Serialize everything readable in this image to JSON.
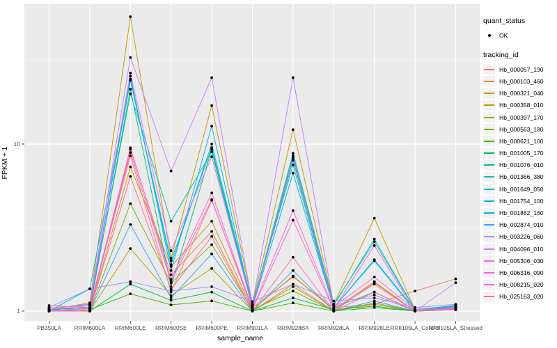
{
  "axis": {
    "x_title": "sample_name",
    "y_title": "FPKM + 1"
  },
  "legend": {
    "quant_status_title": "quant_status",
    "quant_status_item": "OK",
    "tracking_title": "tracking_id"
  },
  "style": {
    "panel_bg": "#EBEBEB",
    "grid_color": "#FFFFFF",
    "tick_label_color": "#4D4D4D",
    "point_color": "#000000"
  },
  "chart_data": {
    "type": "line",
    "title": "",
    "xlabel": "sample_name",
    "ylabel": "FPKM + 1",
    "y_scale": "log10",
    "y_tick_values": [
      1,
      10
    ],
    "y_tick_labels": [
      "1",
      "10"
    ],
    "y_minor_values": [
      3.162,
      31.62
    ],
    "ylim": [
      0.87,
      70
    ],
    "grid": true,
    "legend_position": "right",
    "categories": [
      "PB350LA",
      "RRIM600LA",
      "RRIM600LE",
      "RRIM600SE",
      "RRIM600PE",
      "RRIM901LA",
      "RRIM928BA",
      "RRIM928LA",
      "RRIM928LE",
      "RRII105LA_Control",
      "RRII105LA_Stressed"
    ],
    "series": [
      {
        "name": "Hb_000057_190",
        "color": "#F8766D",
        "values": [
          1.08,
          1.05,
          8.5,
          1.3,
          4.6,
          1.05,
          1.6,
          1.05,
          1.1,
          1.32,
          1.56
        ]
      },
      {
        "name": "Hb_000103_460",
        "color": "#EA8331",
        "values": [
          1.05,
          1.0,
          9.3,
          1.65,
          3.0,
          1.0,
          1.45,
          1.0,
          1.48,
          1.0,
          1.05
        ]
      },
      {
        "name": "Hb_000321_040",
        "color": "#D89000",
        "values": [
          1.0,
          1.0,
          7.3,
          1.85,
          3.45,
          1.02,
          1.62,
          1.02,
          1.5,
          1.0,
          1.05
        ]
      },
      {
        "name": "Hb_000358_010",
        "color": "#C09B00",
        "values": [
          1.02,
          1.12,
          57.9,
          2.07,
          17.0,
          1.1,
          12.2,
          1.1,
          3.6,
          1.02,
          1.08
        ]
      },
      {
        "name": "Hb_000397_170",
        "color": "#A3A500",
        "values": [
          1.0,
          1.0,
          2.37,
          1.24,
          1.8,
          1.0,
          1.4,
          1.0,
          1.1,
          1.0,
          1.02
        ]
      },
      {
        "name": "Hb_000563_180",
        "color": "#7CAE00",
        "values": [
          1.0,
          1.0,
          4.4,
          1.47,
          2.5,
          1.02,
          1.32,
          1.0,
          1.12,
          1.0,
          1.03
        ]
      },
      {
        "name": "Hb_000621_100",
        "color": "#39B600",
        "values": [
          1.0,
          1.02,
          1.27,
          1.09,
          1.15,
          1.0,
          1.12,
          1.0,
          1.05,
          1.0,
          1.02
        ]
      },
      {
        "name": "Hb_001005_170",
        "color": "#00BB4E",
        "values": [
          1.0,
          1.0,
          1.45,
          1.16,
          1.3,
          1.0,
          1.2,
          1.02,
          1.07,
          1.0,
          1.07
        ]
      },
      {
        "name": "Hb_001076_010",
        "color": "#00BF7D",
        "values": [
          1.0,
          1.02,
          21.3,
          1.4,
          9.3,
          1.05,
          8.0,
          1.05,
          1.3,
          1.0,
          1.07
        ]
      },
      {
        "name": "Hb_001366_380",
        "color": "#00C1A3",
        "values": [
          1.02,
          1.05,
          20.0,
          3.45,
          9.0,
          1.05,
          8.5,
          1.08,
          2.7,
          1.02,
          1.08
        ]
      },
      {
        "name": "Hb_001649_050",
        "color": "#00BFC4",
        "values": [
          1.0,
          1.1,
          24.0,
          2.0,
          9.5,
          1.08,
          8.8,
          1.1,
          2.6,
          1.02,
          1.07
        ]
      },
      {
        "name": "Hb_001754_100",
        "color": "#00BAE0",
        "values": [
          1.0,
          1.36,
          24.5,
          1.9,
          10.0,
          1.1,
          7.5,
          1.05,
          2.0,
          1.0,
          1.05
        ]
      },
      {
        "name": "Hb_001862_160",
        "color": "#00B0F6",
        "values": [
          1.02,
          1.05,
          25.5,
          1.75,
          12.8,
          1.05,
          6.7,
          1.05,
          2.03,
          1.02,
          1.06
        ]
      },
      {
        "name": "Hb_002874_010",
        "color": "#35A2FF",
        "values": [
          1.0,
          1.0,
          3.3,
          1.2,
          2.2,
          1.0,
          1.75,
          1.0,
          1.15,
          1.0,
          1.03
        ]
      },
      {
        "name": "Hb_003226_060",
        "color": "#9590FF",
        "values": [
          1.05,
          1.36,
          1.5,
          1.32,
          1.4,
          1.14,
          1.45,
          1.15,
          1.2,
          1.05,
          1.1
        ]
      },
      {
        "name": "Hb_004096_010",
        "color": "#C77CFF",
        "values": [
          1.04,
          1.1,
          33.0,
          6.9,
          25.0,
          1.1,
          25.0,
          1.08,
          1.25,
          1.0,
          1.48
        ]
      },
      {
        "name": "Hb_005306_030",
        "color": "#E76BF3",
        "values": [
          1.02,
          1.08,
          26.6,
          2.3,
          8.4,
          1.06,
          8.3,
          1.06,
          1.6,
          1.02,
          1.05
        ]
      },
      {
        "name": "Hb_006316_090",
        "color": "#FA62DB",
        "values": [
          1.0,
          1.04,
          9.5,
          1.55,
          5.1,
          1.03,
          4.0,
          1.03,
          2.47,
          1.0,
          1.04
        ]
      },
      {
        "name": "Hb_008215_020",
        "color": "#FF61CC",
        "values": [
          1.0,
          1.02,
          8.9,
          1.5,
          4.65,
          1.02,
          3.5,
          1.02,
          1.45,
          1.0,
          1.03
        ]
      },
      {
        "name": "Hb_025163_020",
        "color": "#FF6A98",
        "values": [
          1.0,
          1.0,
          6.4,
          1.35,
          2.8,
          1.0,
          2.1,
          1.0,
          1.3,
          1.0,
          1.02
        ]
      }
    ],
    "quant_status": {
      "title": "quant_status",
      "items": [
        "OK"
      ]
    },
    "legend_title": "tracking_id"
  }
}
